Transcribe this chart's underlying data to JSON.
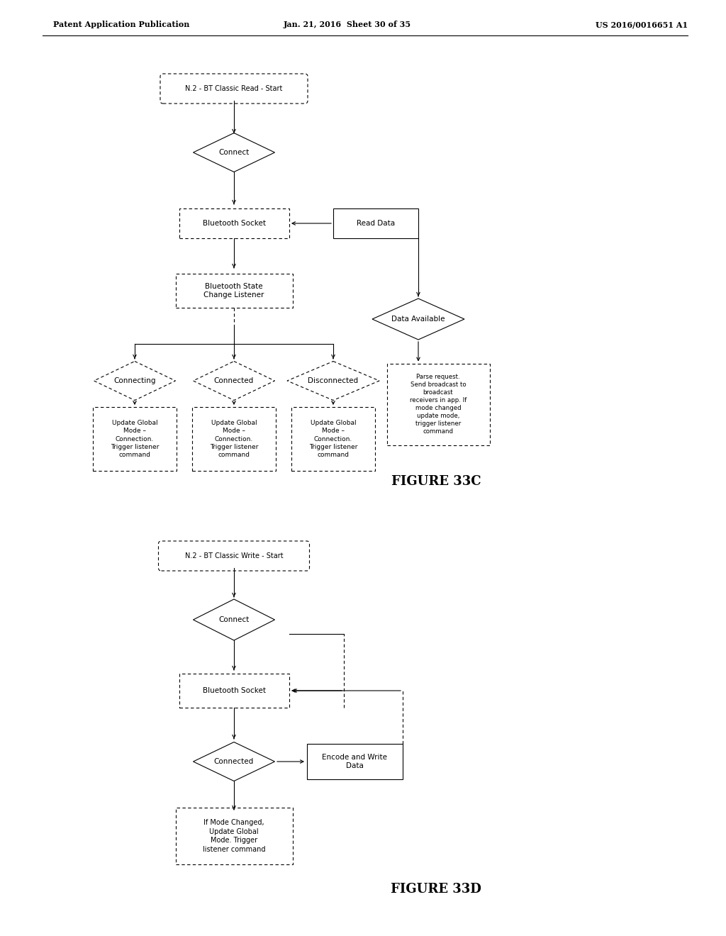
{
  "header_left": "Patent Application Publication",
  "header_middle": "Jan. 21, 2016  Sheet 30 of 35",
  "header_right": "US 2016/0016651 A1",
  "figure_33c_label": "FIGURE 33C",
  "figure_33d_label": "FIGURE 33D",
  "bg_color": "#ffffff"
}
